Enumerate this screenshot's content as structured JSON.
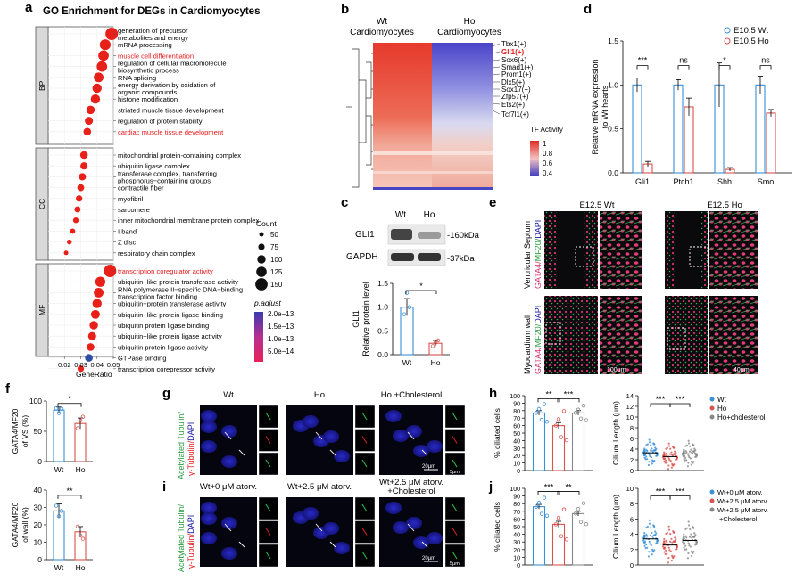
{
  "panel_letters": {
    "a": "a",
    "b": "b",
    "c": "c",
    "d": "d",
    "e": "e",
    "f": "f",
    "g": "g",
    "h": "h",
    "i": "i",
    "j": "j"
  },
  "colors": {
    "red": "#e41a1c",
    "blue": "#2166ac",
    "dot_red": "#e8201a",
    "dot_blue": "#2e4ea3",
    "wt_blue": "#3b8fd6",
    "ho_red": "#d9534f",
    "gray": "#888888",
    "nucleus": "#1a1aa6"
  },
  "panel_a": {
    "title": "GO Enrichment for DEGs in Cardiomyocytes",
    "xlabel": "GeneRatio",
    "sections": [
      "BP",
      "CC",
      "MF"
    ],
    "size_legend_title": "Count",
    "size_legend": [
      "50",
      "75",
      "100",
      "125",
      "150"
    ],
    "color_legend_title": "p.adjust",
    "color_legend": [
      "2.0e−13",
      "1.5e−13",
      "1.0e−13",
      "5.0e−14"
    ]
  },
  "chart_data": [
    {
      "type": "scatter",
      "panel": "a",
      "title": "GO Enrichment for DEGs in Cardiomyocytes",
      "xlabel": "GeneRatio",
      "ylabel": "",
      "xlim": [
        0.01,
        0.05
      ],
      "xticks": [
        "0.02",
        "0.03",
        "0.04",
        "0.05"
      ],
      "groups": [
        {
          "name": "BP",
          "terms": [
            {
              "label": "generation of precursor metabolites and energy",
              "x": 0.049,
              "count": 150,
              "red": false
            },
            {
              "label": "mRNA processing",
              "x": 0.045,
              "count": 130,
              "red": false
            },
            {
              "label": "muscle cell differentiation",
              "x": 0.044,
              "count": 125,
              "red": true
            },
            {
              "label": "regulation of cellular macromolecule biosynthetic process",
              "x": 0.043,
              "count": 125,
              "red": false
            },
            {
              "label": "RNA splicing",
              "x": 0.041,
              "count": 115,
              "red": false
            },
            {
              "label": "energy derivation by oxidation of organic compounds",
              "x": 0.04,
              "count": 110,
              "red": false
            },
            {
              "label": "histone modification",
              "x": 0.039,
              "count": 110,
              "red": false
            },
            {
              "label": "striated muscle tissue development",
              "x": 0.036,
              "count": 100,
              "red": false
            },
            {
              "label": "regulation of protein stability",
              "x": 0.035,
              "count": 95,
              "red": false
            },
            {
              "label": "cardiac muscle tissue development",
              "x": 0.034,
              "count": 90,
              "red": true
            }
          ]
        },
        {
          "name": "CC",
          "terms": [
            {
              "label": "mitochondrial protein-containing complex",
              "x": 0.032,
              "count": 90,
              "red": false
            },
            {
              "label": "ubiquitin ligase complex",
              "x": 0.032,
              "count": 85,
              "red": false
            },
            {
              "label": "transferase complex, transferring phosphorus−containing groups",
              "x": 0.031,
              "count": 85,
              "red": false
            },
            {
              "label": "contractile fiber",
              "x": 0.03,
              "count": 80,
              "red": false
            },
            {
              "label": "myofibril",
              "x": 0.029,
              "count": 75,
              "red": false
            },
            {
              "label": "sarcomere",
              "x": 0.028,
              "count": 70,
              "red": false
            },
            {
              "label": "inner mitochondrial membrane protein complex",
              "x": 0.027,
              "count": 65,
              "red": false
            },
            {
              "label": "I band",
              "x": 0.025,
              "count": 60,
              "red": false
            },
            {
              "label": "Z disc",
              "x": 0.023,
              "count": 55,
              "red": false
            },
            {
              "label": "respiratory chain complex",
              "x": 0.021,
              "count": 50,
              "red": false
            }
          ]
        },
        {
          "name": "MF",
          "terms": [
            {
              "label": "transcription coregulator activity",
              "x": 0.048,
              "count": 150,
              "red": true
            },
            {
              "label": "ubiquitin−like protein transferase activity",
              "x": 0.042,
              "count": 120,
              "red": false
            },
            {
              "label": "RNA polymerase II−specific DNA−binding transcription factor binding",
              "x": 0.041,
              "count": 115,
              "red": false
            },
            {
              "label": "ubiquitin−protein transferase activity",
              "x": 0.04,
              "count": 110,
              "red": false
            },
            {
              "label": "ubiquitin−like protein ligase binding",
              "x": 0.039,
              "count": 105,
              "red": false
            },
            {
              "label": "ubiquitin protein ligase binding",
              "x": 0.038,
              "count": 100,
              "red": false
            },
            {
              "label": "ubiquitin−like protein ligase activity",
              "x": 0.037,
              "count": 95,
              "red": false
            },
            {
              "label": "ubiquitin protein ligase activity",
              "x": 0.036,
              "count": 90,
              "red": false
            },
            {
              "label": "GTPase binding",
              "x": 0.035,
              "count": 90,
              "red": false,
              "blue": true
            },
            {
              "label": "transcription corepressor activity",
              "x": 0.03,
              "count": 75,
              "red": false
            }
          ]
        }
      ]
    },
    {
      "type": "bar",
      "panel": "d",
      "ylabel": "Relative mRNA expression to Wt hearts",
      "categories": [
        "Gli1",
        "Ptch1",
        "Shh",
        "Smo"
      ],
      "ylim": [
        0,
        1.5
      ],
      "yticks": [
        "0.0",
        "0.5",
        "1.0",
        "1.5"
      ],
      "series": [
        {
          "name": "E10.5 Wt",
          "values": [
            1.0,
            1.0,
            1.0,
            1.0
          ]
        },
        {
          "name": "E10.5 Ho",
          "values": [
            0.1,
            0.75,
            0.04,
            0.68
          ]
        }
      ],
      "significance": [
        "***",
        "ns",
        "*",
        "ns"
      ]
    },
    {
      "type": "bar",
      "panel": "c",
      "ylabel": "Relative protein level",
      "ylabel2": "GLI1",
      "categories": [
        "Wt",
        "Ho"
      ],
      "ylim": [
        0,
        1.5
      ],
      "values": [
        1.0,
        0.24
      ],
      "significance": [
        "*"
      ]
    },
    {
      "type": "bar",
      "panel": "f-top",
      "ylabel": "GATA4/MF20 of VS (%)",
      "categories": [
        "Wt",
        "Ho"
      ],
      "ylim": [
        0,
        100
      ],
      "yticks": [
        "0",
        "50",
        "100"
      ],
      "values": [
        85,
        63
      ],
      "significance": [
        "*"
      ]
    },
    {
      "type": "bar",
      "panel": "f-bottom",
      "ylabel": "GATA4/MF20 of wall (%)",
      "categories": [
        "Wt",
        "Ho"
      ],
      "ylim": [
        0,
        40
      ],
      "yticks": [
        "0",
        "10",
        "20",
        "30",
        "40"
      ],
      "values": [
        28,
        16
      ],
      "significance": [
        "**"
      ]
    },
    {
      "type": "bar",
      "panel": "h-left",
      "ylabel": "% ciliated cells",
      "categories": [
        "Wt",
        "Ho",
        "Ho+cholesterol"
      ],
      "ylim": [
        0,
        100
      ],
      "yticks": [
        "0",
        "10",
        "20",
        "30",
        "40",
        "50",
        "60",
        "70",
        "80",
        "90",
        "100"
      ],
      "values": [
        77,
        60,
        77
      ],
      "significance": [
        "**",
        "***"
      ]
    },
    {
      "type": "scatter",
      "panel": "h-right",
      "ylabel": "Cilium Length (μm)",
      "ylim": [
        0,
        14
      ],
      "yticks": [
        "0",
        "2",
        "4",
        "6",
        "8",
        "10",
        "12",
        "14"
      ],
      "series": [
        {
          "name": "Wt",
          "values": [
            3.3
          ]
        },
        {
          "name": "Ho",
          "values": [
            2.6
          ]
        },
        {
          "name": "Ho+cholesterol",
          "values": [
            3.1
          ]
        }
      ],
      "significance": [
        "***",
        "***"
      ]
    },
    {
      "type": "bar",
      "panel": "j-left",
      "ylabel": "% ciliated cells",
      "categories": [
        "Wt+0 μM atorv.",
        "Wt+2.5 μM atorv.",
        "Wt+2.5 μM atorv. +Cholesterol"
      ],
      "ylim": [
        0,
        100
      ],
      "yticks": [
        "0",
        "10",
        "20",
        "30",
        "40",
        "50",
        "60",
        "70",
        "80",
        "90",
        "100"
      ],
      "values": [
        76,
        53,
        67
      ],
      "significance": [
        "***",
        "**"
      ]
    },
    {
      "type": "scatter",
      "panel": "j-right",
      "ylabel": "Cilium Length (μm)",
      "ylim": [
        0,
        10
      ],
      "yticks": [
        "0",
        "2",
        "4",
        "6",
        "8",
        "10"
      ],
      "series": [
        {
          "name": "Wt+0 μM atorv.",
          "values": [
            3.4
          ]
        },
        {
          "name": "Wt+2.5 μM atorv.",
          "values": [
            2.6
          ]
        },
        {
          "name": "Wt+2.5 μM atorv. +Cholesterol",
          "values": [
            3.2
          ]
        }
      ],
      "significance": [
        "***",
        "***"
      ]
    }
  ],
  "panel_b": {
    "col_wt": "Wt\nCardiomyocytes",
    "col_ho": "Ho\nCardiomyocytes",
    "genes": [
      "Tbx1(+)",
      "Gli1(+)",
      "Sox6(+)",
      "Smad1(+)",
      "Prom1(+)",
      "Dlx5(+)",
      "Sox17(+)",
      "Zfp57(+)",
      "Ets2(+)",
      "Tcf7l1(+)"
    ],
    "highlight_gene": "Gli1(+)",
    "legend_title": "TF Activity",
    "legend_ticks": [
      "1",
      "0.8",
      "0.6",
      "0.4"
    ]
  },
  "panel_c": {
    "col_wt": "Wt",
    "col_ho": "Ho",
    "row1": "GLI1",
    "row2": "GAPDH",
    "kda1": "-160kDa",
    "kda2": "-37kDa",
    "bar_ylabel": "Relative protein level",
    "bar_ylabel2": "GLI1",
    "yticks": [
      "0.0",
      "0.5",
      "1.0",
      "1.5"
    ],
    "cats": [
      "Wt",
      "Ho"
    ],
    "sig": "*"
  },
  "panel_d": {
    "legend_wt": "E10.5 Wt",
    "legend_ho": "E10.5 Ho"
  },
  "panel_e": {
    "col_wt": "E12.5 Wt",
    "col_ho": "E12.5 Ho",
    "row1_label": "Ventricular Septum",
    "row2_label": "Myocardium wall",
    "stain_gata4": "GATA4/",
    "stain_mf20": "MF20/",
    "stain_dapi": "DAPI",
    "scale1": "100μm",
    "scale2": "40μm"
  },
  "panel_g": {
    "cols": [
      "Wt",
      "Ho",
      "Ho +Cholesterol"
    ],
    "stain_acet": "Acetylated Tubulin/",
    "stain_gamma": "γ-Tubulin/",
    "stain_dapi": "DAPI",
    "scale1": "20μm",
    "scale2": "5μm"
  },
  "panel_i": {
    "cols": [
      "Wt+0 μM atorv.",
      "Wt+2.5 μM atorv.",
      "Wt+2.5 μM atorv.",
      "+Cholesterol"
    ],
    "stain_acet": "Acetylated Tubulin/",
    "stain_gamma": "γ-Tubulin/",
    "stain_dapi": "DAPI",
    "scale1": "20μm",
    "scale2": "5μm"
  },
  "panel_h": {
    "legend": [
      "Wt",
      "Ho",
      "Ho+cholesterol"
    ]
  },
  "panel_j": {
    "legend": [
      "Wt+0 μM atorv.",
      "Wt+2.5 μM atorv.",
      "Wt+2.5 μM atorv.",
      "+Cholesterol"
    ]
  }
}
